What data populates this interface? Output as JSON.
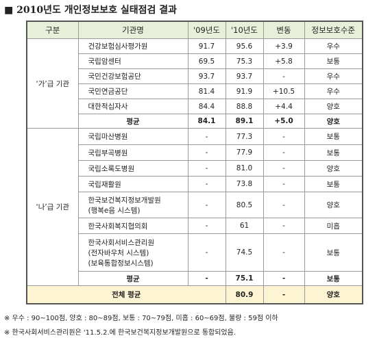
{
  "title": "■ 2010년도 개인정보보호 실태점검 결과",
  "table": {
    "header": [
      "구분",
      "기관명",
      "'09년도",
      "'10년도",
      "변동",
      "정보보호수준"
    ],
    "groups": [
      {
        "label": "‘가’급 기관",
        "rows": [
          [
            "건강보험심사평가원",
            "91.7",
            "95.6",
            "+3.9",
            "우수"
          ],
          [
            "국립암센터",
            "69.5",
            "75.3",
            "+5.8",
            "보통"
          ],
          [
            "국민건강보험공단",
            "93.7",
            "93.7",
            "-",
            "우수"
          ],
          [
            "국민연금공단",
            "81.4",
            "91.9",
            "+10.5",
            "우수"
          ],
          [
            "대한적십자사",
            "84.4",
            "88.8",
            "+4.4",
            "양호"
          ]
        ],
        "average": [
          "평균",
          "84.1",
          "89.1",
          "+5.0",
          "양호"
        ]
      },
      {
        "label": "‘나’급 기관",
        "rows": [
          [
            "국립마산병원",
            "-",
            "77.3",
            "-",
            "보통"
          ],
          [
            "국립부곡병원",
            "-",
            "77.9",
            "-",
            "보통"
          ],
          [
            "국립소록도병원",
            "-",
            "81.0",
            "-",
            "양호"
          ],
          [
            "국립재활원",
            "-",
            "73.8",
            "-",
            "보통"
          ],
          [
            "한국보건복지정보개발원\n(행복e음 시스템)",
            "-",
            "80.5",
            "-",
            "양호"
          ],
          [
            "한국사회복지협의회",
            "-",
            "61",
            "-",
            "미흡"
          ],
          [
            "한국사회서비스관리원\n(전자바우처 시스템)\n(보육통합정보시스템)",
            "-",
            "74.5",
            "-",
            "보통"
          ]
        ],
        "average": [
          "평균",
          "-",
          "75.1",
          "-",
          "보통"
        ]
      }
    ],
    "total": [
      "전체 평균",
      "80.9",
      "-",
      "양호"
    ]
  },
  "notes": [
    "※ 우수 : 90~100점, 양호 : 80~89점, 보통 : 70~79점, 미흡 : 60~69점, 불량 : 59점 이하",
    "※ 한국사회서비스관리원은 '11.5.2.에 한국보건복지정보개발원으로 통합되었음."
  ]
}
